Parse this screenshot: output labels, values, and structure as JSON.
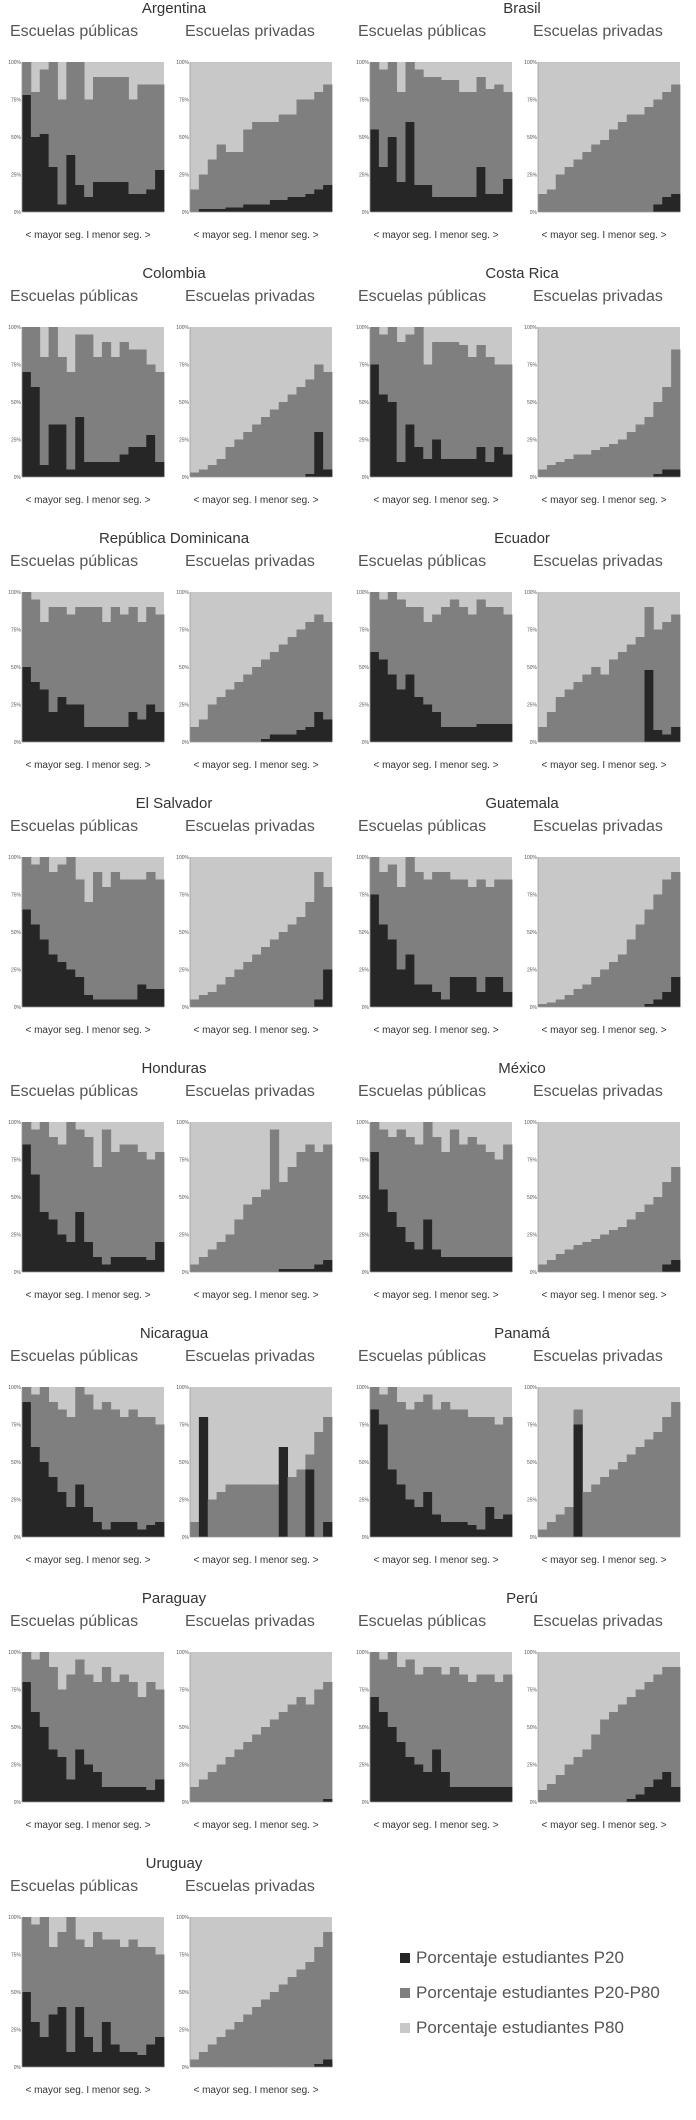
{
  "chart_data": {
    "type": "area",
    "subtitle_public": "Escuelas públicas",
    "subtitle_private": "Escuelas privadas",
    "xlabel": "< mayor seg. I menor seg. >",
    "yticks": [
      "0%",
      "25%",
      "50%",
      "75%",
      "100%"
    ],
    "ylim": [
      0,
      100
    ],
    "series": [
      {
        "name": "Porcentaje estudiantes P20",
        "color": "#262626"
      },
      {
        "name": "Porcentaje estudiantes P20-P80",
        "color": "#7f7f7f"
      },
      {
        "name": "Porcentaje estudiantes P80",
        "color": "#c8c8c8"
      }
    ],
    "countries": [
      {
        "name": "Argentina",
        "public": {
          "p20": [
            78,
            50,
            52,
            30,
            5,
            38,
            18,
            10,
            20,
            20,
            20,
            20,
            12,
            12,
            15,
            28
          ],
          "top": [
            100,
            80,
            95,
            100,
            75,
            100,
            100,
            75,
            90,
            90,
            90,
            90,
            75,
            85,
            85,
            85
          ]
        },
        "private": {
          "p20": [
            0,
            2,
            2,
            2,
            3,
            3,
            5,
            5,
            5,
            8,
            8,
            10,
            10,
            12,
            15,
            18
          ],
          "top": [
            15,
            25,
            35,
            45,
            40,
            40,
            55,
            60,
            60,
            60,
            65,
            65,
            75,
            75,
            80,
            85
          ]
        }
      },
      {
        "name": "Brasil",
        "public": {
          "p20": [
            55,
            30,
            50,
            20,
            60,
            18,
            18,
            10,
            10,
            10,
            10,
            10,
            30,
            12,
            12,
            22
          ],
          "top": [
            100,
            95,
            100,
            80,
            100,
            95,
            90,
            90,
            88,
            88,
            80,
            80,
            90,
            82,
            85,
            80
          ]
        },
        "private": {
          "p20": [
            0,
            0,
            0,
            0,
            0,
            0,
            0,
            0,
            0,
            0,
            0,
            0,
            0,
            5,
            10,
            12
          ],
          "top": [
            12,
            15,
            25,
            30,
            35,
            40,
            45,
            48,
            55,
            60,
            65,
            65,
            70,
            75,
            80,
            85
          ]
        }
      },
      {
        "name": "Colombia",
        "public": {
          "p20": [
            70,
            60,
            8,
            35,
            35,
            5,
            40,
            10,
            10,
            10,
            10,
            15,
            20,
            20,
            28,
            10
          ],
          "top": [
            100,
            100,
            80,
            100,
            80,
            70,
            95,
            95,
            80,
            90,
            80,
            90,
            85,
            85,
            75,
            70
          ]
        },
        "private": {
          "p20": [
            0,
            0,
            0,
            0,
            0,
            0,
            0,
            0,
            0,
            0,
            0,
            0,
            0,
            2,
            30,
            5
          ],
          "top": [
            3,
            5,
            8,
            12,
            20,
            25,
            30,
            35,
            40,
            45,
            50,
            55,
            60,
            65,
            75,
            70
          ]
        }
      },
      {
        "name": "Costa Rica",
        "public": {
          "p20": [
            75,
            55,
            50,
            10,
            35,
            20,
            12,
            25,
            12,
            12,
            12,
            12,
            20,
            10,
            20,
            15
          ],
          "top": [
            100,
            95,
            100,
            90,
            95,
            100,
            75,
            90,
            90,
            90,
            88,
            80,
            88,
            80,
            75,
            75
          ]
        },
        "private": {
          "p20": [
            0,
            0,
            0,
            0,
            0,
            0,
            0,
            0,
            0,
            0,
            0,
            0,
            0,
            2,
            5,
            5
          ],
          "top": [
            5,
            8,
            10,
            12,
            15,
            15,
            18,
            20,
            22,
            25,
            30,
            35,
            40,
            50,
            60,
            85
          ]
        }
      },
      {
        "name": "República Dominicana",
        "public": {
          "p20": [
            50,
            40,
            35,
            20,
            30,
            25,
            25,
            10,
            10,
            10,
            10,
            10,
            20,
            15,
            25,
            20
          ],
          "top": [
            100,
            95,
            80,
            90,
            90,
            85,
            90,
            90,
            90,
            80,
            90,
            85,
            90,
            80,
            90,
            85
          ]
        },
        "private": {
          "p20": [
            0,
            0,
            0,
            0,
            0,
            0,
            0,
            0,
            2,
            5,
            5,
            5,
            8,
            10,
            20,
            15
          ],
          "top": [
            10,
            15,
            25,
            30,
            35,
            40,
            45,
            50,
            55,
            60,
            65,
            70,
            75,
            80,
            85,
            80
          ]
        }
      },
      {
        "name": "Ecuador",
        "public": {
          "p20": [
            60,
            55,
            45,
            35,
            45,
            30,
            25,
            20,
            10,
            10,
            10,
            10,
            12,
            12,
            12,
            12
          ],
          "top": [
            100,
            95,
            100,
            95,
            90,
            90,
            80,
            85,
            90,
            95,
            90,
            85,
            95,
            90,
            90,
            85
          ]
        },
        "private": {
          "p20": [
            0,
            0,
            0,
            0,
            0,
            0,
            0,
            0,
            0,
            0,
            0,
            0,
            48,
            8,
            5,
            10
          ],
          "top": [
            10,
            20,
            30,
            35,
            40,
            45,
            50,
            45,
            55,
            60,
            65,
            70,
            90,
            75,
            80,
            85
          ]
        }
      },
      {
        "name": "El Salvador",
        "public": {
          "p20": [
            65,
            55,
            45,
            35,
            30,
            25,
            20,
            8,
            5,
            5,
            5,
            5,
            5,
            15,
            12,
            12
          ],
          "top": [
            100,
            95,
            100,
            90,
            95,
            100,
            85,
            70,
            90,
            80,
            90,
            85,
            85,
            85,
            90,
            85
          ]
        },
        "private": {
          "p20": [
            0,
            0,
            0,
            0,
            0,
            0,
            0,
            0,
            0,
            0,
            0,
            0,
            0,
            0,
            5,
            25
          ],
          "top": [
            5,
            8,
            10,
            15,
            20,
            25,
            30,
            35,
            40,
            45,
            50,
            55,
            60,
            70,
            90,
            80
          ]
        }
      },
      {
        "name": "Guatemala",
        "public": {
          "p20": [
            75,
            55,
            45,
            25,
            35,
            15,
            15,
            10,
            5,
            20,
            20,
            20,
            10,
            20,
            20,
            10
          ],
          "top": [
            100,
            90,
            95,
            80,
            100,
            90,
            85,
            90,
            90,
            85,
            85,
            80,
            85,
            80,
            85,
            85
          ]
        },
        "private": {
          "p20": [
            0,
            0,
            0,
            0,
            0,
            0,
            0,
            0,
            0,
            0,
            0,
            0,
            2,
            5,
            10,
            20
          ],
          "top": [
            2,
            3,
            5,
            8,
            12,
            15,
            20,
            25,
            30,
            35,
            45,
            55,
            65,
            75,
            85,
            90
          ]
        }
      },
      {
        "name": "Honduras",
        "public": {
          "p20": [
            85,
            65,
            40,
            35,
            25,
            20,
            40,
            20,
            10,
            5,
            10,
            10,
            10,
            10,
            8,
            20
          ],
          "top": [
            100,
            95,
            100,
            90,
            85,
            100,
            95,
            90,
            70,
            95,
            80,
            85,
            85,
            80,
            75,
            80
          ]
        },
        "private": {
          "p20": [
            0,
            0,
            0,
            0,
            0,
            0,
            0,
            0,
            0,
            0,
            2,
            2,
            2,
            2,
            5,
            8
          ],
          "top": [
            5,
            10,
            15,
            20,
            25,
            35,
            45,
            50,
            55,
            95,
            60,
            70,
            80,
            85,
            80,
            85
          ]
        }
      },
      {
        "name": "México",
        "public": {
          "p20": [
            80,
            55,
            40,
            30,
            20,
            15,
            35,
            15,
            10,
            10,
            10,
            10,
            10,
            10,
            10,
            10
          ],
          "top": [
            100,
            95,
            90,
            95,
            90,
            85,
            100,
            90,
            80,
            95,
            85,
            90,
            85,
            80,
            75,
            85
          ]
        },
        "private": {
          "p20": [
            0,
            0,
            0,
            0,
            0,
            0,
            0,
            0,
            0,
            0,
            0,
            0,
            0,
            0,
            5,
            8
          ],
          "top": [
            5,
            8,
            12,
            15,
            18,
            20,
            22,
            25,
            28,
            30,
            35,
            40,
            45,
            50,
            60,
            70
          ]
        }
      },
      {
        "name": "Nicaragua",
        "public": {
          "p20": [
            90,
            60,
            50,
            40,
            30,
            20,
            35,
            20,
            10,
            5,
            10,
            10,
            10,
            5,
            8,
            10
          ],
          "top": [
            100,
            95,
            100,
            90,
            85,
            80,
            100,
            95,
            85,
            90,
            85,
            80,
            85,
            80,
            80,
            75
          ]
        },
        "private": {
          "p20": [
            0,
            80,
            0,
            0,
            0,
            0,
            0,
            0,
            0,
            0,
            60,
            0,
            0,
            45,
            0,
            10
          ],
          "top": [
            10,
            80,
            25,
            30,
            35,
            35,
            35,
            35,
            35,
            35,
            60,
            40,
            45,
            55,
            70,
            80
          ]
        }
      },
      {
        "name": "Panamá",
        "public": {
          "p20": [
            85,
            75,
            45,
            35,
            25,
            20,
            30,
            15,
            10,
            10,
            10,
            8,
            5,
            20,
            12,
            15
          ],
          "top": [
            100,
            95,
            100,
            90,
            85,
            90,
            95,
            85,
            90,
            85,
            85,
            80,
            80,
            80,
            75,
            80
          ]
        },
        "private": {
          "p20": [
            0,
            0,
            0,
            0,
            75,
            0,
            0,
            0,
            0,
            0,
            0,
            0,
            0,
            0,
            0,
            0
          ],
          "top": [
            5,
            10,
            15,
            20,
            85,
            30,
            35,
            40,
            45,
            50,
            55,
            60,
            65,
            70,
            80,
            90
          ]
        }
      },
      {
        "name": "Paraguay",
        "public": {
          "p20": [
            80,
            60,
            50,
            35,
            30,
            15,
            35,
            25,
            20,
            10,
            10,
            10,
            10,
            10,
            8,
            15
          ],
          "top": [
            100,
            95,
            100,
            90,
            75,
            85,
            95,
            85,
            80,
            90,
            80,
            85,
            80,
            70,
            80,
            75
          ]
        },
        "private": {
          "p20": [
            0,
            0,
            0,
            0,
            0,
            0,
            0,
            0,
            0,
            0,
            0,
            0,
            0,
            0,
            0,
            2
          ],
          "top": [
            10,
            15,
            20,
            25,
            30,
            35,
            40,
            45,
            50,
            55,
            60,
            65,
            70,
            65,
            75,
            80
          ]
        }
      },
      {
        "name": "Perú",
        "public": {
          "p20": [
            70,
            60,
            50,
            40,
            30,
            25,
            20,
            35,
            20,
            10,
            10,
            10,
            10,
            10,
            10,
            10
          ],
          "top": [
            100,
            95,
            100,
            90,
            95,
            85,
            90,
            90,
            85,
            90,
            85,
            80,
            85,
            85,
            80,
            85
          ]
        },
        "private": {
          "p20": [
            0,
            0,
            0,
            0,
            0,
            0,
            0,
            0,
            0,
            0,
            2,
            5,
            10,
            15,
            20,
            10
          ],
          "top": [
            8,
            12,
            18,
            25,
            30,
            35,
            45,
            55,
            60,
            65,
            70,
            75,
            80,
            85,
            90,
            90
          ]
        }
      },
      {
        "name": "Uruguay",
        "public": {
          "p20": [
            50,
            30,
            20,
            35,
            40,
            10,
            40,
            20,
            10,
            30,
            15,
            10,
            10,
            8,
            15,
            20
          ],
          "top": [
            100,
            95,
            100,
            80,
            90,
            100,
            85,
            80,
            90,
            85,
            85,
            80,
            85,
            80,
            80,
            75
          ]
        },
        "private": {
          "p20": [
            0,
            0,
            0,
            0,
            0,
            0,
            0,
            0,
            0,
            0,
            0,
            0,
            0,
            0,
            2,
            5
          ],
          "top": [
            5,
            10,
            15,
            20,
            25,
            30,
            35,
            40,
            45,
            50,
            55,
            60,
            65,
            70,
            80,
            90
          ]
        }
      }
    ]
  }
}
